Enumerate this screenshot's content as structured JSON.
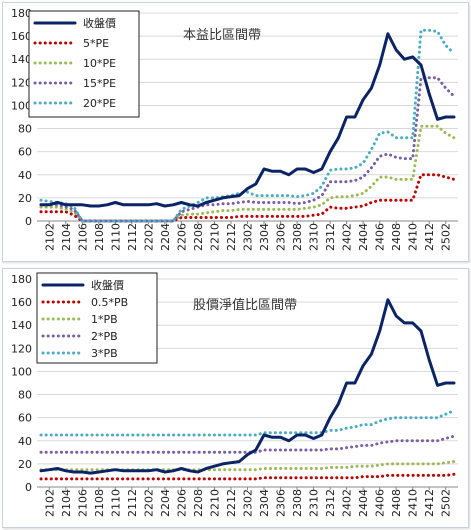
{
  "chart_data": [
    {
      "type": "line",
      "title": "本益比區間帶",
      "ylim": [
        0,
        180
      ],
      "yticks": [
        0,
        20,
        40,
        60,
        80,
        100,
        120,
        140,
        160,
        180
      ],
      "x": [
        "2101",
        "2102",
        "2103",
        "2104",
        "2105",
        "2106",
        "2107",
        "2108",
        "2109",
        "2110",
        "2111",
        "2112",
        "2201",
        "2202",
        "2203",
        "2204",
        "2205",
        "2206",
        "2207",
        "2208",
        "2209",
        "2210",
        "2211",
        "2212",
        "2301",
        "2302",
        "2303",
        "2304",
        "2305",
        "2306",
        "2307",
        "2308",
        "2309",
        "2310",
        "2311",
        "2312",
        "2401",
        "2402",
        "2403",
        "2404",
        "2405",
        "2406",
        "2407",
        "2408",
        "2409",
        "2410",
        "2411",
        "2412",
        "2501",
        "2502",
        "2503"
      ],
      "xtick_labels": [
        "2102",
        "2104",
        "2106",
        "2108",
        "2110",
        "2112",
        "2202",
        "2204",
        "2206",
        "2208",
        "2210",
        "2212",
        "2302",
        "2304",
        "2306",
        "2308",
        "2310",
        "2312",
        "2402",
        "2404",
        "2406",
        "2408",
        "2410",
        "2412",
        "2502"
      ],
      "legend_position": "top-left",
      "grid": true,
      "series": [
        {
          "name": "收盤價",
          "style": "solid",
          "color": "#0b2466",
          "values": [
            14,
            14,
            16,
            14,
            14,
            14,
            13,
            13,
            14,
            16,
            14,
            14,
            14,
            14,
            15,
            13,
            14,
            16,
            14,
            13,
            16,
            18,
            20,
            21,
            22,
            28,
            32,
            45,
            43,
            43,
            40,
            45,
            45,
            42,
            45,
            60,
            72,
            90,
            90,
            105,
            115,
            135,
            162,
            148,
            140,
            142,
            135,
            110,
            88,
            90,
            90
          ]
        },
        {
          "name": "5*PE",
          "style": "dotted",
          "color": "#c00000",
          "values": [
            8,
            8,
            8,
            8,
            5,
            0,
            0,
            0,
            0,
            0,
            0,
            0,
            0,
            0,
            0,
            0,
            0,
            3,
            3,
            3,
            3,
            3,
            3,
            3,
            4,
            4,
            4,
            4,
            4,
            4,
            4,
            4,
            4,
            5,
            6,
            12,
            11,
            11,
            12,
            13,
            16,
            18,
            18,
            18,
            18,
            18,
            40,
            40,
            40,
            38,
            36
          ]
        },
        {
          "name": "10*PE",
          "style": "dotted",
          "color": "#9bbb59",
          "values": [
            12,
            12,
            12,
            10,
            8,
            0,
            0,
            0,
            0,
            0,
            0,
            0,
            0,
            0,
            0,
            0,
            0,
            5,
            6,
            6,
            7,
            8,
            9,
            9,
            10,
            10,
            10,
            10,
            10,
            10,
            10,
            10,
            11,
            12,
            14,
            20,
            21,
            21,
            22,
            24,
            30,
            38,
            38,
            36,
            36,
            36,
            82,
            82,
            82,
            76,
            72
          ]
        },
        {
          "name": "15*PE",
          "style": "dotted",
          "color": "#7b5fa6",
          "values": [
            14,
            14,
            14,
            12,
            10,
            0,
            0,
            0,
            0,
            0,
            0,
            0,
            0,
            0,
            0,
            0,
            0,
            8,
            10,
            12,
            14,
            14,
            15,
            15,
            16,
            17,
            16,
            16,
            16,
            16,
            16,
            15,
            16,
            18,
            22,
            34,
            34,
            34,
            35,
            38,
            46,
            56,
            58,
            55,
            54,
            54,
            124,
            124,
            124,
            115,
            108
          ]
        },
        {
          "name": "20*PE",
          "style": "dotted",
          "color": "#4bacc6",
          "values": [
            18,
            17,
            16,
            15,
            12,
            0,
            0,
            0,
            0,
            0,
            0,
            0,
            0,
            0,
            0,
            0,
            0,
            10,
            13,
            16,
            20,
            20,
            21,
            22,
            24,
            25,
            22,
            22,
            22,
            22,
            22,
            21,
            22,
            24,
            30,
            44,
            45,
            45,
            46,
            50,
            62,
            76,
            77,
            72,
            72,
            72,
            165,
            165,
            164,
            152,
            145
          ]
        }
      ]
    },
    {
      "type": "line",
      "title": "股價淨值比區間帶",
      "ylim": [
        0,
        180
      ],
      "yticks": [
        0,
        20,
        40,
        60,
        80,
        100,
        120,
        140,
        160,
        180
      ],
      "x": [
        "2101",
        "2102",
        "2103",
        "2104",
        "2105",
        "2106",
        "2107",
        "2108",
        "2109",
        "2110",
        "2111",
        "2112",
        "2201",
        "2202",
        "2203",
        "2204",
        "2205",
        "2206",
        "2207",
        "2208",
        "2209",
        "2210",
        "2211",
        "2212",
        "2301",
        "2302",
        "2303",
        "2304",
        "2305",
        "2306",
        "2307",
        "2308",
        "2309",
        "2310",
        "2311",
        "2312",
        "2401",
        "2402",
        "2403",
        "2404",
        "2405",
        "2406",
        "2407",
        "2408",
        "2409",
        "2410",
        "2411",
        "2412",
        "2501",
        "2502",
        "2503"
      ],
      "xtick_labels": [
        "2102",
        "2104",
        "2106",
        "2108",
        "2110",
        "2112",
        "2202",
        "2204",
        "2206",
        "2208",
        "2210",
        "2212",
        "2302",
        "2304",
        "2306",
        "2308",
        "2310",
        "2312",
        "2402",
        "2404",
        "2406",
        "2408",
        "2410",
        "2412",
        "2502"
      ],
      "legend_position": "top-left",
      "grid": true,
      "series": [
        {
          "name": "收盤價",
          "style": "solid",
          "color": "#0b2466",
          "values": [
            14,
            15,
            16,
            14,
            13,
            13,
            12,
            13,
            14,
            15,
            14,
            14,
            14,
            14,
            15,
            13,
            14,
            16,
            14,
            13,
            16,
            18,
            20,
            21,
            22,
            28,
            32,
            45,
            43,
            43,
            40,
            45,
            45,
            42,
            45,
            60,
            72,
            90,
            90,
            105,
            115,
            135,
            162,
            148,
            142,
            142,
            135,
            110,
            88,
            90,
            90
          ]
        },
        {
          "name": "0.5*PB",
          "style": "dotted",
          "color": "#c00000",
          "values": [
            7,
            7,
            7,
            7,
            7,
            7,
            7,
            7,
            7,
            7,
            7,
            7,
            7,
            7,
            7,
            7,
            7,
            7,
            7,
            7,
            7,
            7,
            7,
            7,
            7,
            7,
            7,
            8,
            8,
            8,
            8,
            8,
            8,
            8,
            8,
            8,
            8,
            8,
            8,
            9,
            9,
            9,
            10,
            10,
            10,
            10,
            10,
            10,
            10,
            10,
            11
          ]
        },
        {
          "name": "1*PB",
          "style": "dotted",
          "color": "#9bbb59",
          "values": [
            15,
            15,
            15,
            15,
            15,
            15,
            15,
            15,
            15,
            15,
            15,
            15,
            15,
            15,
            15,
            15,
            15,
            15,
            15,
            15,
            15,
            15,
            15,
            15,
            15,
            15,
            15,
            16,
            16,
            16,
            16,
            16,
            16,
            16,
            16,
            17,
            17,
            17,
            18,
            18,
            18,
            19,
            20,
            20,
            20,
            20,
            20,
            20,
            20,
            21,
            22
          ]
        },
        {
          "name": "2*PB",
          "style": "dotted",
          "color": "#7b5fa6",
          "values": [
            30,
            30,
            30,
            30,
            30,
            30,
            30,
            30,
            30,
            30,
            30,
            30,
            30,
            30,
            30,
            30,
            30,
            30,
            30,
            30,
            30,
            30,
            30,
            30,
            30,
            30,
            30,
            32,
            32,
            32,
            32,
            32,
            32,
            32,
            32,
            33,
            33,
            34,
            35,
            36,
            36,
            38,
            39,
            40,
            40,
            40,
            40,
            40,
            40,
            42,
            44
          ]
        },
        {
          "name": "3*PB",
          "style": "dotted",
          "color": "#4bacc6",
          "values": [
            45,
            45,
            45,
            45,
            45,
            45,
            45,
            45,
            45,
            45,
            45,
            45,
            45,
            45,
            45,
            45,
            45,
            45,
            45,
            45,
            45,
            45,
            45,
            45,
            45,
            45,
            45,
            47,
            47,
            47,
            47,
            47,
            47,
            47,
            47,
            49,
            49,
            51,
            52,
            54,
            54,
            57,
            59,
            60,
            60,
            60,
            60,
            60,
            60,
            63,
            66
          ]
        }
      ]
    }
  ]
}
